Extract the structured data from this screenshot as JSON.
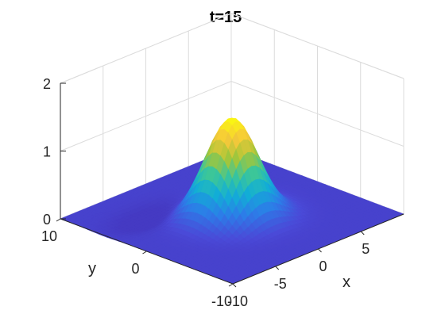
{
  "chart_data": {
    "type": "surface",
    "title": "t=15",
    "xlabel": "x",
    "ylabel": "y",
    "zlabel": "",
    "xlim": [
      -10,
      10
    ],
    "ylim": [
      -10,
      10
    ],
    "zlim": [
      0,
      2
    ],
    "xticks": [
      -10,
      -5,
      0,
      5
    ],
    "yticks": [
      -10,
      0,
      10
    ],
    "zticks": [
      0,
      1,
      2
    ],
    "grid": true,
    "colormap": [
      "#3e26a8",
      "#4a4ad8",
      "#2c7de8",
      "#12aed6",
      "#3bc69a",
      "#a6c637",
      "#f7c83a",
      "#f9fb0e"
    ],
    "surface": {
      "description_of_function": "gaussian peak",
      "peak": {
        "x": 0,
        "y": 0,
        "z": 1.45
      },
      "width": 2.2,
      "trough": {
        "x": -4,
        "y": 5,
        "depth": 0.12
      }
    }
  }
}
